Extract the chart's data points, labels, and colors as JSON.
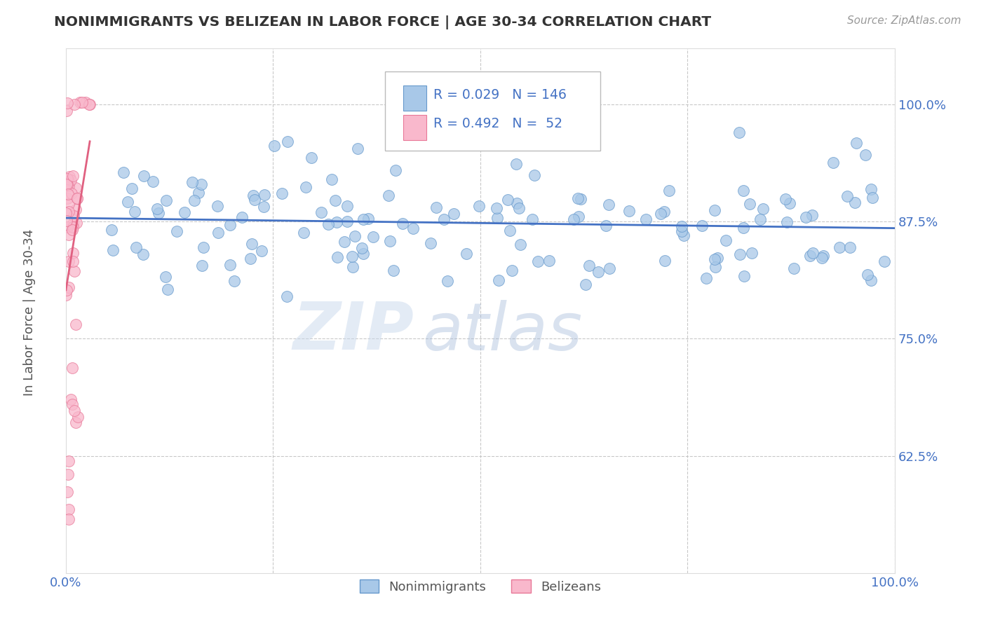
{
  "title": "NONIMMIGRANTS VS BELIZEAN IN LABOR FORCE | AGE 30-34 CORRELATION CHART",
  "source": "Source: ZipAtlas.com",
  "xlabel": "",
  "ylabel": "In Labor Force | Age 30-34",
  "xlim": [
    0.0,
    1.0
  ],
  "ylim": [
    0.5,
    1.06
  ],
  "yticks": [
    0.625,
    0.75,
    0.875,
    1.0
  ],
  "ytick_labels": [
    "62.5%",
    "75.0%",
    "87.5%",
    "100.0%"
  ],
  "xticks": [
    0.0,
    0.25,
    0.5,
    0.75,
    1.0
  ],
  "xtick_labels": [
    "0.0%",
    "",
    "",
    "",
    "100.0%"
  ],
  "blue_R": 0.029,
  "blue_N": 146,
  "pink_R": 0.492,
  "pink_N": 52,
  "blue_color": "#a8c8e8",
  "pink_color": "#f9b8cc",
  "blue_edge_color": "#6699cc",
  "pink_edge_color": "#e87898",
  "blue_line_color": "#4472c4",
  "pink_line_color": "#e06080",
  "title_color": "#333333",
  "axis_color": "#4472c4",
  "legend_blue_label": "Nonimmigrants",
  "legend_pink_label": "Belizeans",
  "watermark_zip": "ZIP",
  "watermark_atlas": "atlas",
  "background_color": "#ffffff",
  "grid_color": "#bbbbbb",
  "seed": 42
}
